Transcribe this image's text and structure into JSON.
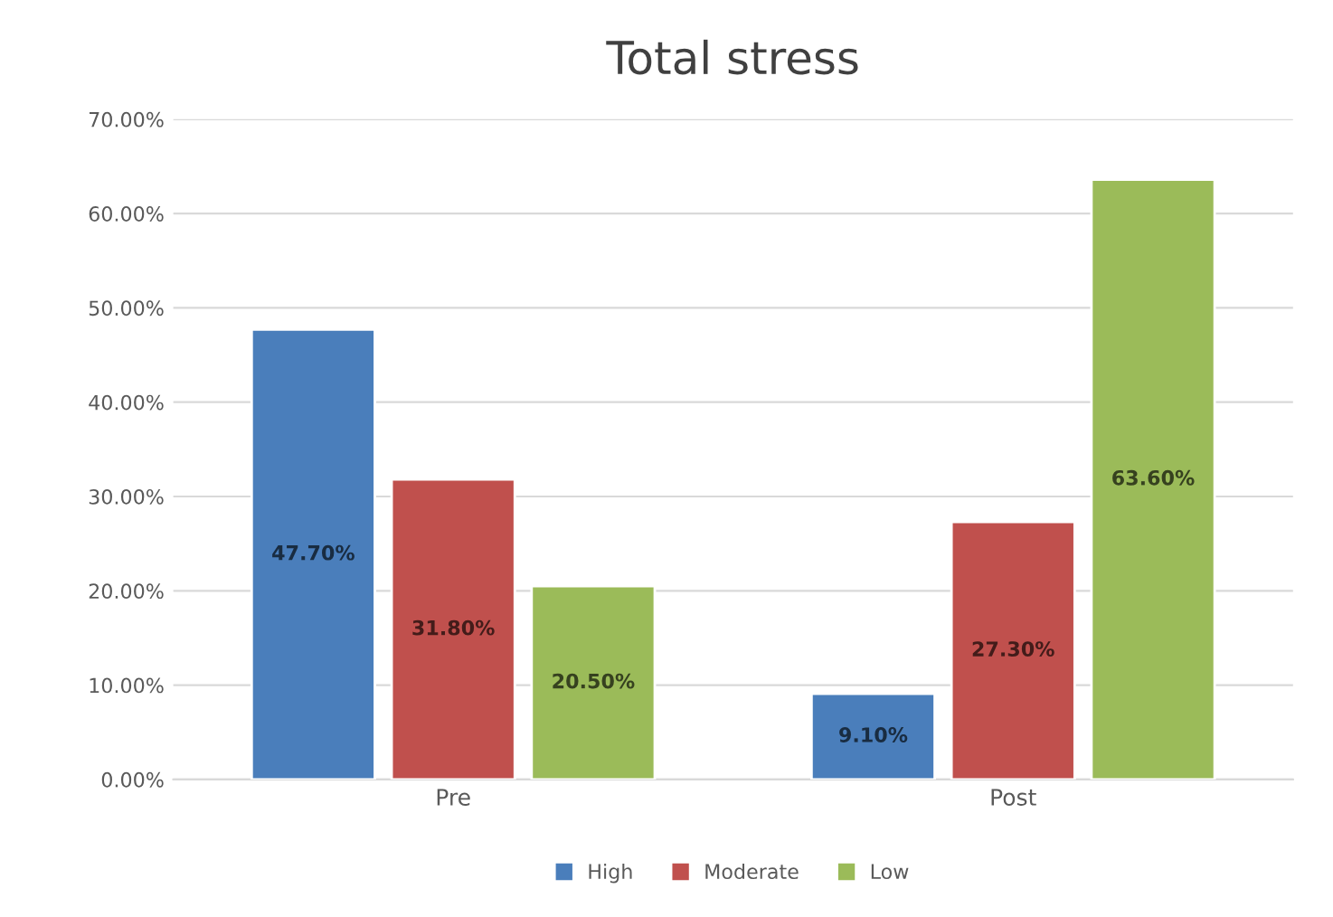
{
  "chart_data": {
    "type": "bar",
    "title": "Total stress",
    "categories": [
      "Pre",
      "Post"
    ],
    "series": [
      {
        "name": "High",
        "color": "#4a7ebb",
        "values": [
          47.7,
          9.1
        ],
        "value_labels": [
          "47.70%",
          "9.10%"
        ]
      },
      {
        "name": "Moderate",
        "color": "#c0504d",
        "values": [
          31.8,
          27.3
        ],
        "value_labels": [
          "31.80%",
          "27.30%"
        ]
      },
      {
        "name": "Low",
        "color": "#9bbb59",
        "values": [
          20.5,
          63.6
        ],
        "value_labels": [
          "20.50%",
          "63.60%"
        ]
      }
    ],
    "ylim": [
      0,
      70
    ],
    "yticks": [
      {
        "value": 0,
        "label": "0.00%"
      },
      {
        "value": 10,
        "label": "10.00%"
      },
      {
        "value": 20,
        "label": "20.00%"
      },
      {
        "value": 30,
        "label": "30.00%"
      },
      {
        "value": 40,
        "label": "40.00%"
      },
      {
        "value": 50,
        "label": "50.00%"
      },
      {
        "value": 60,
        "label": "60.00%"
      },
      {
        "value": 70,
        "label": "70.00%"
      }
    ],
    "grid": "y",
    "legend": "bottom"
  }
}
